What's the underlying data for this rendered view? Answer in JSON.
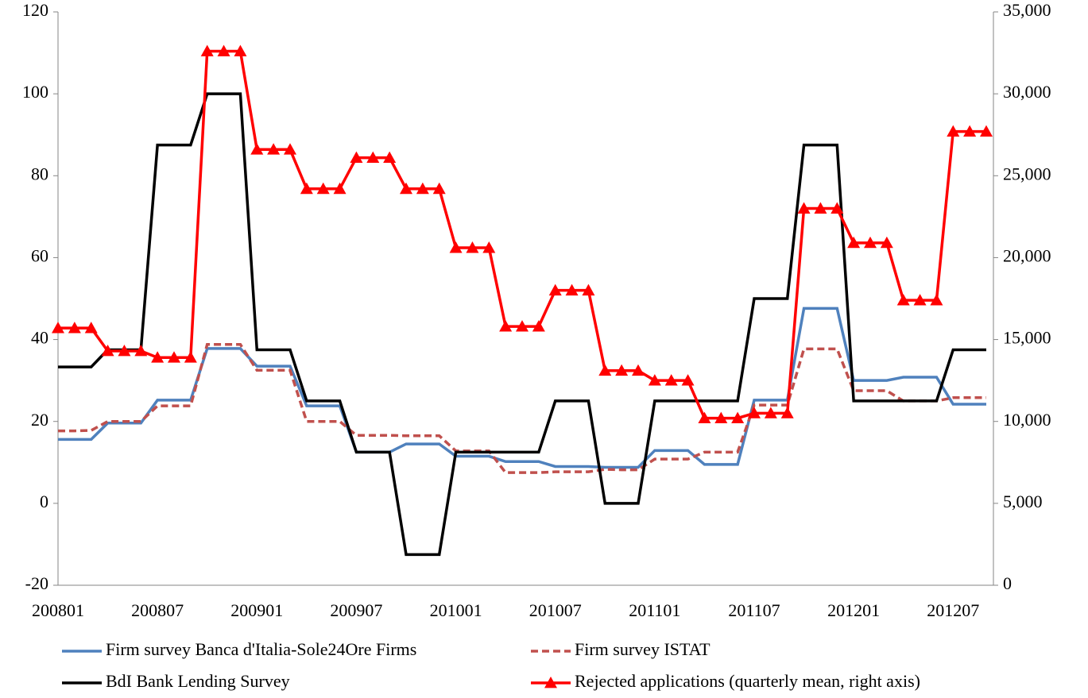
{
  "chart_data": {
    "type": "line",
    "categories": [
      "200801",
      null,
      null,
      null,
      null,
      null,
      "200807",
      null,
      null,
      null,
      null,
      null,
      "200901",
      null,
      null,
      null,
      null,
      null,
      "200907",
      null,
      null,
      null,
      null,
      null,
      "201001",
      null,
      null,
      null,
      null,
      null,
      "201007",
      null,
      null,
      null,
      null,
      null,
      "201101",
      null,
      null,
      null,
      null,
      null,
      "201107",
      null,
      null,
      null,
      null,
      null,
      "201201",
      null,
      null,
      null,
      null,
      null,
      "201207",
      null,
      null
    ],
    "ylim": [
      -20,
      120
    ],
    "yticks": [
      -20,
      0,
      20,
      40,
      60,
      80,
      100,
      120
    ],
    "y2lim": [
      0,
      35000
    ],
    "y2ticks": [
      0,
      {
        "value": 5000,
        "label": "5,000"
      },
      {
        "value": 10000,
        "label": "10,000"
      },
      {
        "value": 15000,
        "label": "15,000"
      },
      {
        "value": 20000,
        "label": "20,000"
      },
      {
        "value": 25000,
        "label": "25,000"
      },
      {
        "value": 30000,
        "label": "30,000"
      },
      {
        "value": 35000,
        "label": "35,000"
      }
    ],
    "series": [
      {
        "name": "Firm survey Banca d'Italia-Sole24Ore Firms",
        "color": "#4f81bd",
        "values": [
          15.6,
          15.6,
          15.6,
          19.6,
          19.6,
          19.6,
          25.2,
          25.2,
          25.2,
          37.8,
          37.8,
          37.8,
          33.5,
          33.5,
          33.5,
          23.8,
          23.8,
          23.8,
          12.5,
          12.5,
          12.5,
          14.5,
          14.5,
          14.5,
          11.5,
          11.5,
          11.5,
          10.2,
          10.2,
          10.2,
          9,
          9,
          9,
          8.8,
          8.8,
          8.8,
          12.9,
          12.9,
          12.9,
          9.5,
          9.5,
          9.5,
          25.2,
          25.2,
          25.2,
          47.6,
          47.6,
          47.6,
          30,
          30,
          30,
          30.8,
          30.8,
          30.8,
          24.2,
          24.2,
          24.2
        ]
      },
      {
        "name": "Firm survey ISTAT",
        "color": "#c0504d",
        "dashed": true,
        "values": [
          17.7,
          17.7,
          17.8,
          20,
          20,
          20,
          23.8,
          23.8,
          23.8,
          38.8,
          38.8,
          38.8,
          32.5,
          32.5,
          32.5,
          20,
          20,
          20,
          16.6,
          16.6,
          16.6,
          16.5,
          16.5,
          16.5,
          12.8,
          12.8,
          12.8,
          7.5,
          7.5,
          7.5,
          7.7,
          7.7,
          7.7,
          8.3,
          8.2,
          8.2,
          10.8,
          10.8,
          10.8,
          12.5,
          12.5,
          12.5,
          24,
          24,
          24,
          37.7,
          37.7,
          37.7,
          27.5,
          27.5,
          27.5,
          25,
          25,
          25,
          25.8,
          25.8,
          25.8
        ]
      },
      {
        "name": "BdI Bank Lending Survey",
        "color": "#000000",
        "values": [
          33.3,
          33.3,
          33.3,
          37.5,
          37.5,
          37.5,
          87.5,
          87.5,
          87.5,
          100,
          100,
          100,
          37.5,
          37.5,
          37.5,
          25,
          25,
          25,
          12.5,
          12.5,
          12.5,
          -12.5,
          -12.5,
          -12.5,
          12.5,
          12.5,
          12.5,
          12.5,
          12.5,
          12.5,
          25,
          25,
          25,
          0,
          0,
          0,
          25,
          25,
          25,
          25,
          25,
          25,
          50,
          50,
          50,
          87.5,
          87.5,
          87.5,
          25,
          25,
          25,
          25,
          25,
          25,
          37.5,
          37.5,
          37.5
        ]
      },
      {
        "name": "Rejected applications (quarterly mean, right axis)",
        "color": "#ff0000",
        "axis": "y2",
        "marker": "triangle",
        "values": [
          15700,
          15700,
          15700,
          14300,
          14300,
          14300,
          13900,
          13900,
          13900,
          32600,
          32600,
          32600,
          26600,
          26600,
          26600,
          24200,
          24200,
          24200,
          26100,
          26100,
          26100,
          24200,
          24200,
          24200,
          20600,
          20600,
          20600,
          15800,
          15800,
          15800,
          18000,
          18000,
          18000,
          13100,
          13100,
          13100,
          12500,
          12500,
          12500,
          10200,
          10200,
          10200,
          10500,
          10500,
          10500,
          23000,
          23000,
          23000,
          20900,
          20900,
          20900,
          17400,
          17400,
          17400,
          27700,
          27700,
          27700
        ]
      }
    ]
  }
}
